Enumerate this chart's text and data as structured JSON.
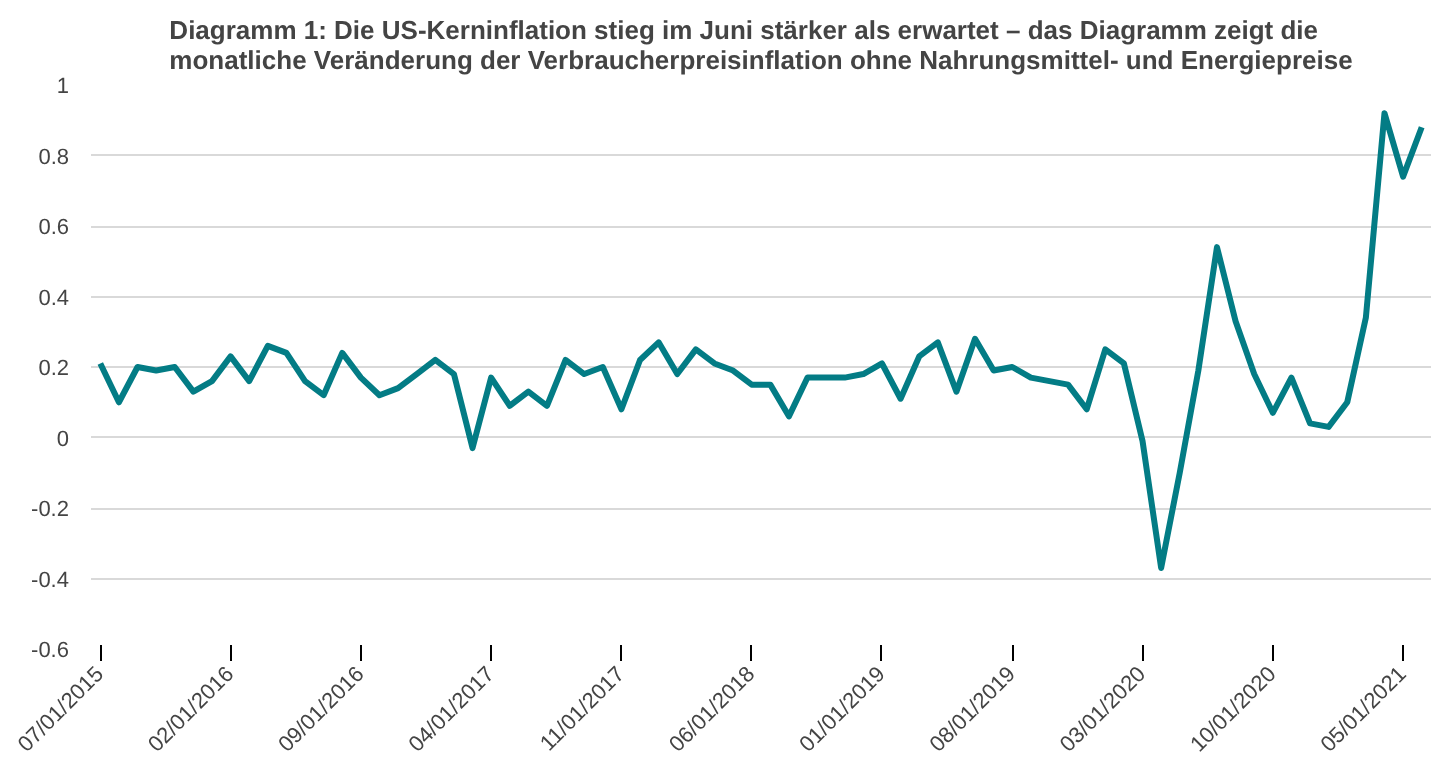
{
  "chart_data": {
    "type": "line",
    "title": "Diagramm 1: Die US-Kerninflation stieg im Juni stärker als erwartet – das Diagramm zeigt die monatliche Veränderung der Verbraucherpreisinflation ohne Nahrungsmittel- und Energiepreise",
    "categories": [
      "07/01/2015",
      null,
      null,
      null,
      null,
      null,
      null,
      "02/01/2016",
      null,
      null,
      null,
      null,
      null,
      null,
      "09/01/2016",
      null,
      null,
      null,
      null,
      null,
      null,
      "04/01/2017",
      null,
      null,
      null,
      null,
      null,
      null,
      "11/01/2017",
      null,
      null,
      null,
      null,
      null,
      null,
      "06/01/2018",
      null,
      null,
      null,
      null,
      null,
      null,
      "01/01/2019",
      null,
      null,
      null,
      null,
      null,
      null,
      "08/01/2019",
      null,
      null,
      null,
      null,
      null,
      null,
      "03/01/2020",
      null,
      null,
      null,
      null,
      null,
      null,
      "10/01/2020",
      null,
      null,
      null,
      null,
      null,
      null,
      "05/01/2021",
      null
    ],
    "series": [
      {
        "color": "#037c85",
        "values": [
          0.21,
          0.1,
          0.2,
          0.19,
          0.2,
          0.13,
          0.16,
          0.23,
          0.16,
          0.26,
          0.24,
          0.16,
          0.12,
          0.24,
          0.17,
          0.12,
          0.14,
          0.18,
          0.22,
          0.18,
          -0.03,
          0.17,
          0.09,
          0.13,
          0.09,
          0.22,
          0.18,
          0.2,
          0.08,
          0.22,
          0.27,
          0.18,
          0.25,
          0.21,
          0.19,
          0.15,
          0.15,
          0.06,
          0.17,
          0.17,
          0.17,
          0.18,
          0.21,
          0.11,
          0.23,
          0.27,
          0.13,
          0.28,
          0.19,
          0.2,
          0.17,
          0.16,
          0.15,
          0.08,
          0.25,
          0.21,
          -0.01,
          -0.37,
          -0.1,
          0.19,
          0.54,
          0.33,
          0.18,
          0.07,
          0.17,
          0.04,
          0.03,
          0.1,
          0.34,
          0.92,
          0.74,
          0.88
        ]
      }
    ],
    "ylim": [
      -0.6,
      1
    ],
    "yticks": [
      -0.6,
      -0.4,
      -0.2,
      0,
      0.2,
      0.4,
      0.6,
      0.8,
      1
    ],
    "grid": "y"
  }
}
